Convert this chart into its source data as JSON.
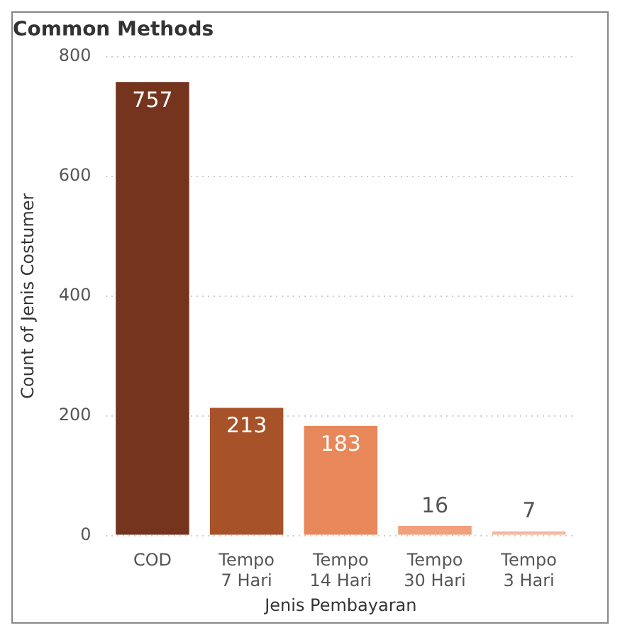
{
  "chart_data": {
    "type": "bar",
    "title": "Common Methods",
    "xlabel": "Jenis Pembayaran",
    "ylabel": "Count of Jenis Costumer",
    "categories": [
      "COD",
      "Tempo 7 Hari",
      "Tempo 14 Hari",
      "Tempo 30 Hari",
      "Tempo 3 Hari"
    ],
    "values": [
      757,
      213,
      183,
      16,
      7
    ],
    "colors": [
      "#74341e",
      "#a8522a",
      "#e8875a",
      "#f0a07c",
      "#f5b8a0"
    ],
    "ylim": [
      0,
      800
    ],
    "yticks": [
      0,
      200,
      400,
      600,
      800
    ],
    "grid": "y",
    "data_labels": true,
    "legend": false
  }
}
